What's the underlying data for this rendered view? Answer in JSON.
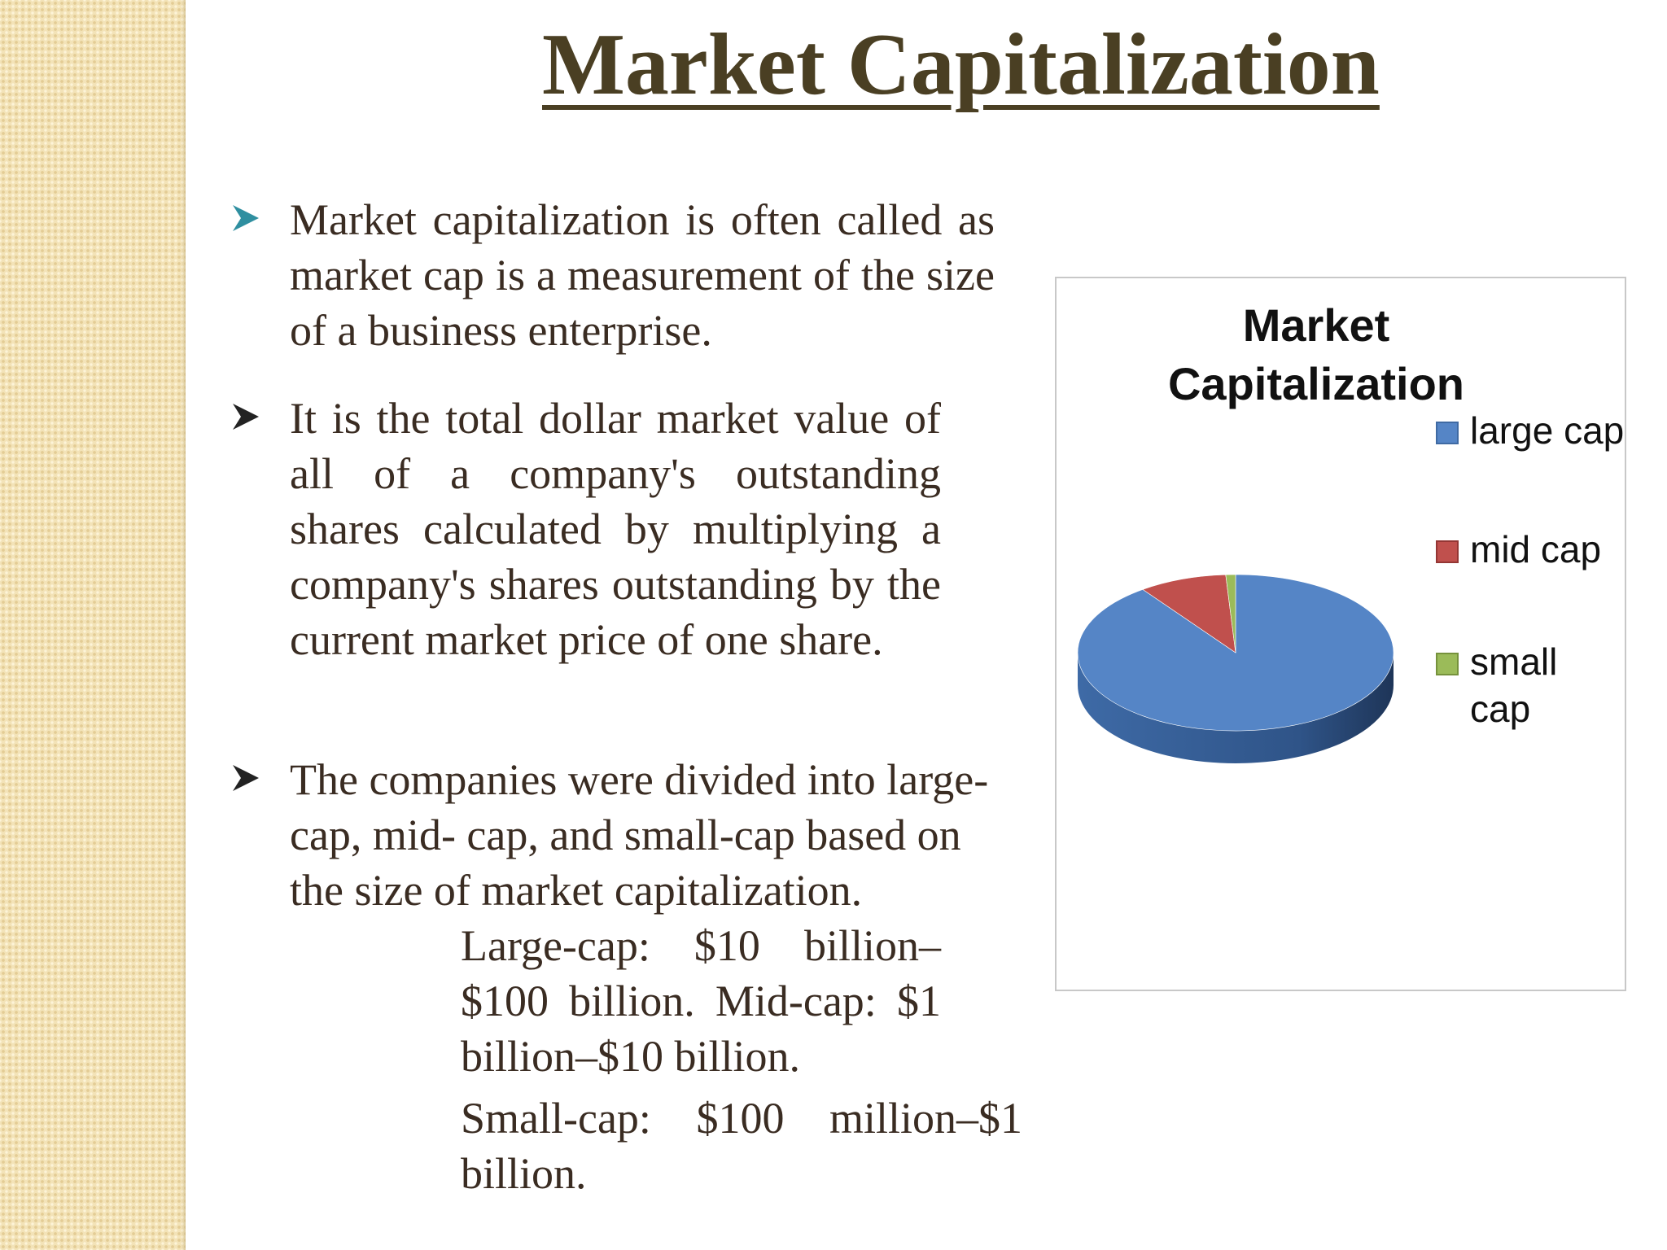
{
  "slide": {
    "title": "Market Capitalization",
    "bullets": [
      {
        "icon": "arrow-bullet-icon",
        "text": "Market capitalization is often called as market  cap is a measurement of the size of a business  enterprise."
      },
      {
        "icon": "arrow-bullet-icon",
        "text": "It is the total dollar market value of all of a  company's outstanding shares calculated by  multiplying a company's shares outstanding  by the current market price of one share."
      },
      {
        "icon": "arrow-bullet-icon",
        "text": "The companies were divided into large-cap, mid-  cap, and small-cap based on the size of market  capitalization."
      }
    ],
    "sub_lines": [
      "Large-cap:  $10  billion–$100 billion.   Mid-cap: $1 billion–$10 billion.",
      "Small-cap:  $100  million–$1 billion."
    ]
  },
  "colors": {
    "title": "#4a3f23",
    "bullet_1": "#2f8fa0",
    "bullet_other": "#222222",
    "large_cap": "#5585c6",
    "mid_cap": "#c0504d",
    "small_cap": "#9bbb59"
  },
  "chart_data": {
    "type": "pie",
    "title": "Market Capitalization",
    "categories": [
      "large cap",
      "mid cap",
      "small cap"
    ],
    "values": [
      90,
      9,
      1
    ],
    "legend_position": "right"
  }
}
